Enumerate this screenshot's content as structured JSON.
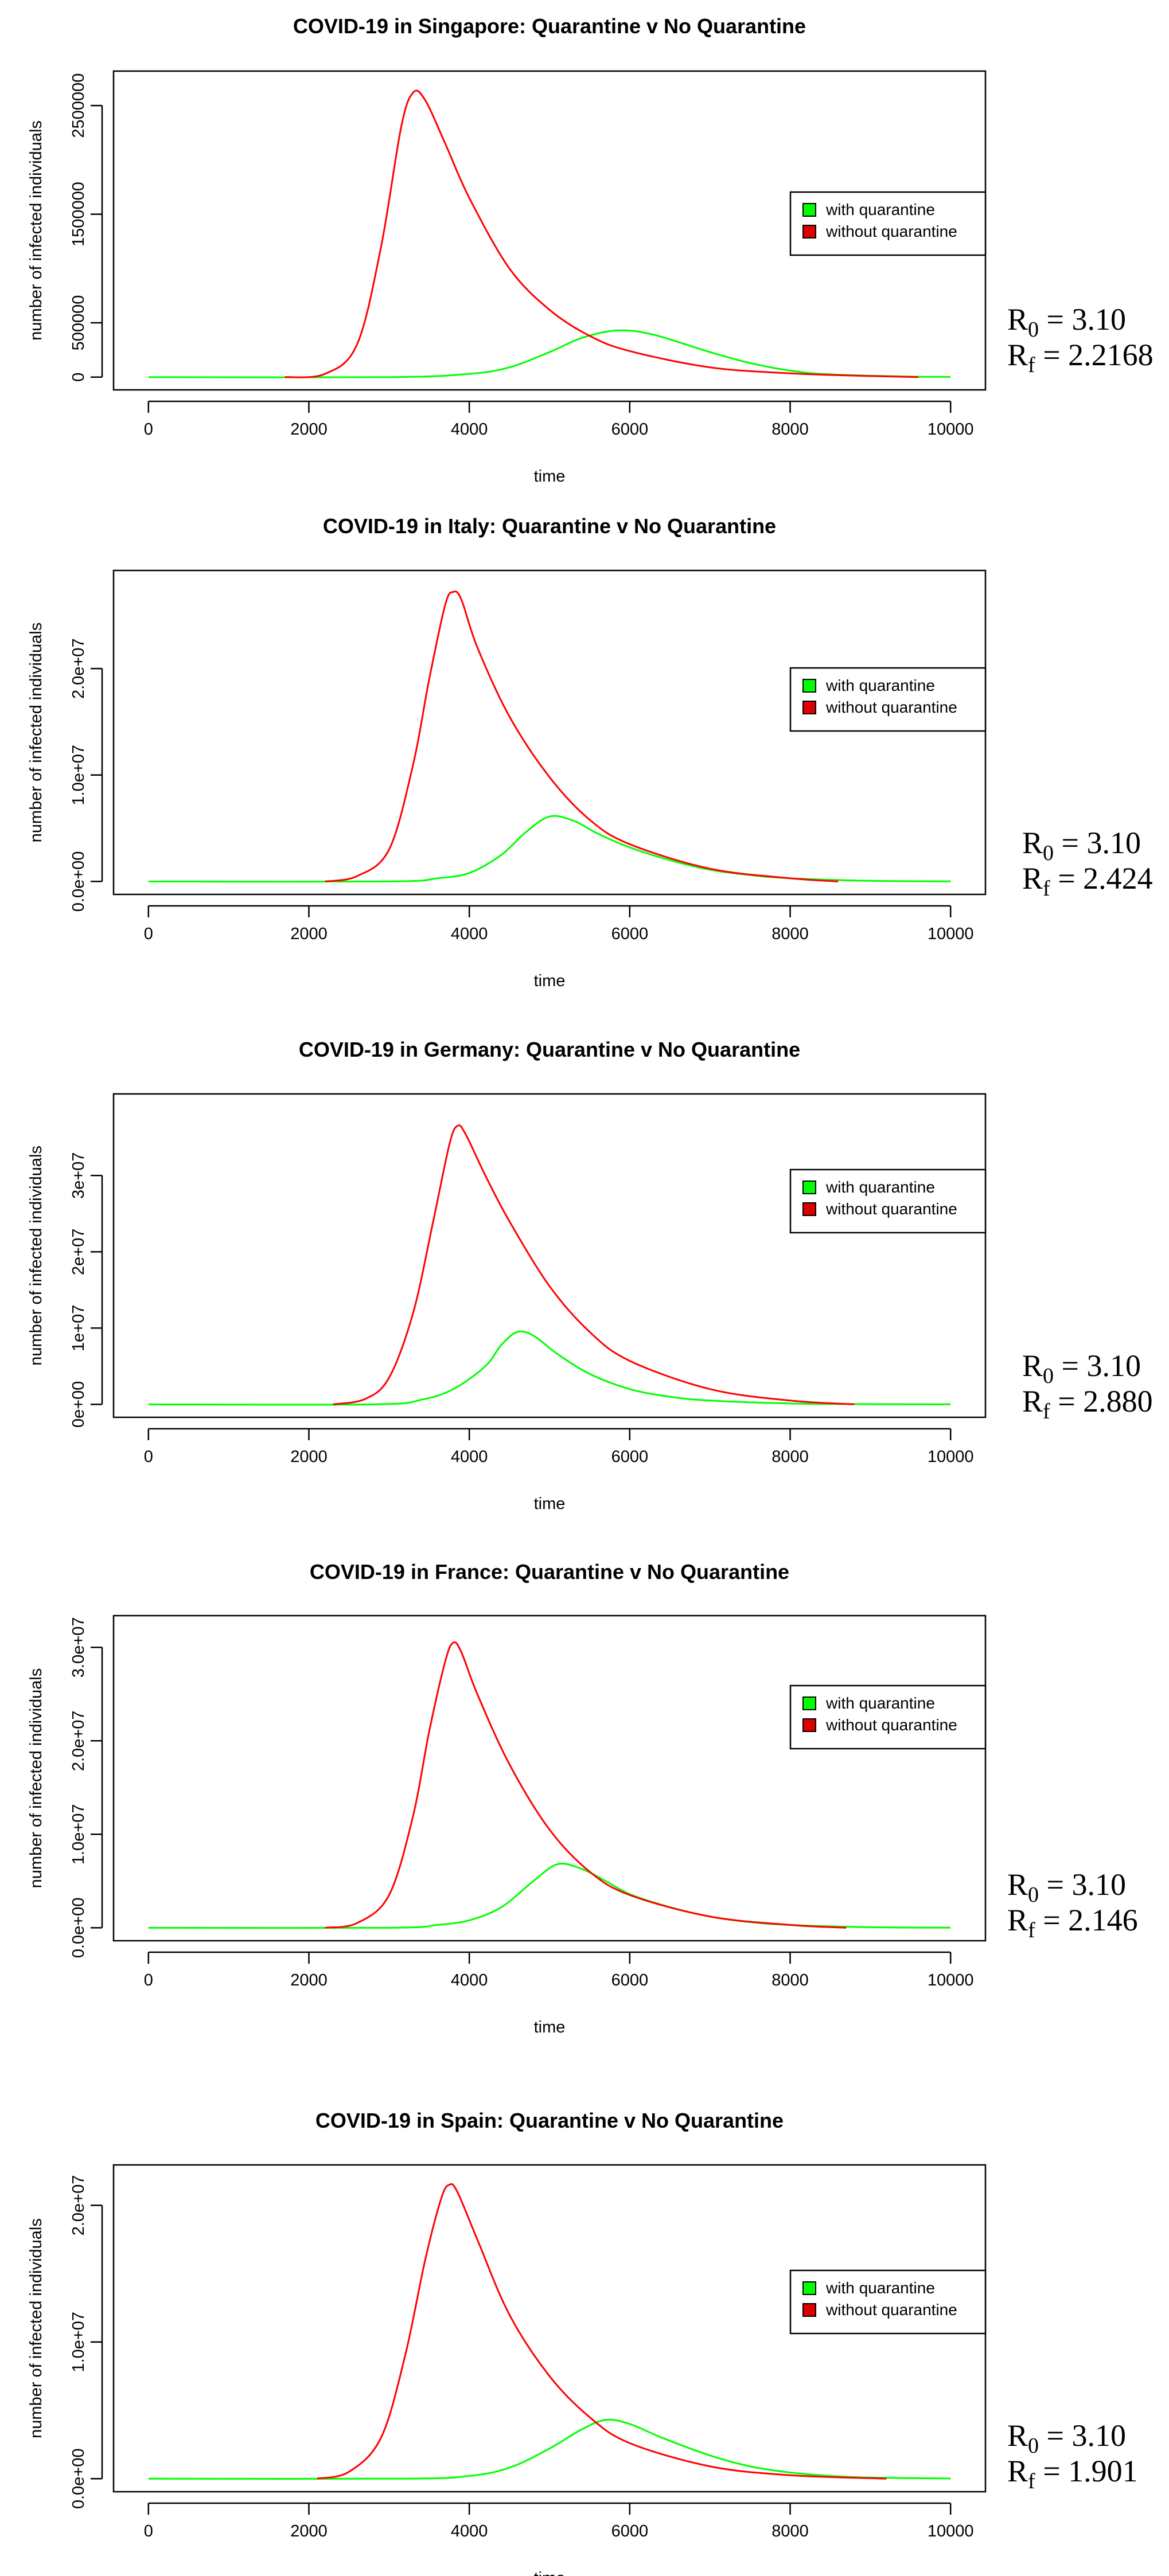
{
  "chart_data": [
    {
      "type": "line",
      "title": "COVID-19 in Singapore: Quarantine v No Quarantine",
      "xlabel": "time",
      "ylabel": "number of infected individuals",
      "xlim": [
        0,
        10000
      ],
      "ylim": [
        0,
        2700000
      ],
      "xticks": [
        0,
        2000,
        4000,
        6000,
        8000,
        10000
      ],
      "xtick_labels": [
        "0",
        "2000",
        "4000",
        "6000",
        "8000",
        "10000"
      ],
      "yticks": [
        0,
        500000,
        1500000,
        2500000
      ],
      "ytick_labels": [
        "0",
        "500000",
        "1500000",
        "2500000"
      ],
      "legend": {
        "position": "right",
        "entries": [
          "with quarantine",
          "without quarantine"
        ]
      },
      "series": [
        {
          "name": "with quarantine",
          "color": "#00ff00",
          "x": [
            0,
            3000,
            4000,
            4500,
            5000,
            5400,
            5850,
            6300,
            7000,
            7500,
            8000,
            8500,
            9500,
            10000
          ],
          "y": [
            0,
            0,
            30000,
            90000,
            230000,
            360000,
            430000,
            390000,
            230000,
            130000,
            60000,
            25000,
            5000,
            2000
          ]
        },
        {
          "name": "without quarantine",
          "color": "#ff0000",
          "x": [
            1700,
            2200,
            2600,
            2900,
            3150,
            3300,
            3450,
            3700,
            4000,
            4500,
            5000,
            5500,
            6000,
            7000,
            8000,
            9000,
            9600
          ],
          "y": [
            0,
            30000,
            300000,
            1200000,
            2300000,
            2620000,
            2550000,
            2150000,
            1650000,
            1000000,
            620000,
            380000,
            240000,
            90000,
            35000,
            10000,
            0
          ]
        }
      ],
      "annotation": {
        "r0_label": "R",
        "r0_sub": "0",
        "r0_value": " = 3.10",
        "rf_label": "R",
        "rf_sub": "f",
        "rf_value": " = 2.2168"
      }
    },
    {
      "type": "line",
      "title": "COVID-19 in Italy: Quarantine v No Quarantine",
      "xlabel": "time",
      "ylabel": "number of infected individuals",
      "xlim": [
        0,
        10000
      ],
      "ylim": [
        0,
        28000000
      ],
      "xticks": [
        0,
        2000,
        4000,
        6000,
        8000,
        10000
      ],
      "xtick_labels": [
        "0",
        "2000",
        "4000",
        "6000",
        "8000",
        "10000"
      ],
      "yticks": [
        0,
        10000000,
        20000000
      ],
      "ytick_labels": [
        "0.0e+00",
        "1.0e+07",
        "2.0e+07"
      ],
      "legend": {
        "position": "right",
        "entries": [
          "with quarantine",
          "without quarantine"
        ]
      },
      "series": [
        {
          "name": "with quarantine",
          "color": "#00ff00",
          "x": [
            0,
            3000,
            3600,
            4000,
            4400,
            4700,
            5000,
            5300,
            5600,
            6000,
            6500,
            7000,
            7500,
            8000,
            9000,
            10000
          ],
          "y": [
            0,
            0,
            300000,
            800000,
            2500000,
            4600000,
            6100000,
            5700000,
            4500000,
            3200000,
            2000000,
            1100000,
            600000,
            300000,
            60000,
            10000
          ]
        },
        {
          "name": "without quarantine",
          "color": "#ff0000",
          "x": [
            2200,
            2600,
            3000,
            3300,
            3500,
            3700,
            3800,
            3900,
            4100,
            4500,
            5000,
            5500,
            6000,
            7000,
            8000,
            8600
          ],
          "y": [
            0,
            500000,
            3000000,
            11000000,
            19000000,
            26000000,
            27200000,
            26500000,
            22000000,
            15500000,
            9800000,
            5800000,
            3500000,
            1200000,
            300000,
            0
          ]
        }
      ],
      "annotation": {
        "r0_label": "R",
        "r0_sub": "0",
        "r0_value": " = 3.10",
        "rf_label": "R",
        "rf_sub": "f",
        "rf_value": " = 2.424"
      }
    },
    {
      "type": "line",
      "title": "COVID-19 in Germany: Quarantine v No Quarantine",
      "xlabel": "time",
      "ylabel": "number of infected individuals",
      "xlim": [
        0,
        10000
      ],
      "ylim": [
        0,
        39000000
      ],
      "xticks": [
        0,
        2000,
        4000,
        6000,
        8000,
        10000
      ],
      "xtick_labels": [
        "0",
        "2000",
        "4000",
        "6000",
        "8000",
        "10000"
      ],
      "yticks": [
        0,
        10000000,
        20000000,
        30000000
      ],
      "ytick_labels": [
        "0e+00",
        "1e+07",
        "2e+07",
        "3e+07"
      ],
      "legend": {
        "position": "right",
        "entries": [
          "with quarantine",
          "without quarantine"
        ]
      },
      "series": [
        {
          "name": "with quarantine",
          "color": "#00ff00",
          "x": [
            0,
            2800,
            3400,
            3800,
            4200,
            4400,
            4600,
            4800,
            5100,
            5500,
            6000,
            6500,
            7000,
            8000,
            9000,
            10000
          ],
          "y": [
            0,
            0,
            600000,
            2000000,
            5000000,
            7800000,
            9500000,
            9000000,
            6600000,
            4000000,
            2000000,
            1000000,
            500000,
            120000,
            30000,
            5000
          ]
        },
        {
          "name": "without quarantine",
          "color": "#ff0000",
          "x": [
            2300,
            2700,
            3000,
            3300,
            3550,
            3750,
            3850,
            3950,
            4200,
            4500,
            5000,
            5500,
            6000,
            7000,
            8000,
            8800
          ],
          "y": [
            0,
            700000,
            3500000,
            12000000,
            24000000,
            34000000,
            36500000,
            35500000,
            30000000,
            24000000,
            15500000,
            9500000,
            5700000,
            2000000,
            500000,
            0
          ]
        }
      ],
      "annotation": {
        "r0_label": "R",
        "r0_sub": "0",
        "r0_value": " = 3.10",
        "rf_label": "R",
        "rf_sub": "f",
        "rf_value": " = 2.880"
      }
    },
    {
      "type": "line",
      "title": "COVID-19 in France: Quarantine v No Quarantine",
      "xlabel": "time",
      "ylabel": "number of infected individuals",
      "xlim": [
        0,
        10000
      ],
      "ylim": [
        0,
        32000000
      ],
      "xticks": [
        0,
        2000,
        4000,
        6000,
        8000,
        10000
      ],
      "xtick_labels": [
        "0",
        "2000",
        "4000",
        "6000",
        "8000",
        "10000"
      ],
      "yticks": [
        0,
        10000000,
        20000000,
        30000000
      ],
      "ytick_labels": [
        "0.0e+00",
        "1.0e+07",
        "2.0e+07",
        "3.0e+07"
      ],
      "legend": {
        "position": "right",
        "entries": [
          "with quarantine",
          "without quarantine"
        ]
      },
      "series": [
        {
          "name": "with quarantine",
          "color": "#00ff00",
          "x": [
            0,
            3000,
            3600,
            4000,
            4400,
            4800,
            5100,
            5400,
            5700,
            6000,
            6500,
            7000,
            7500,
            8000,
            9000,
            10000
          ],
          "y": [
            0,
            0,
            300000,
            800000,
            2200000,
            5000000,
            6800000,
            6300000,
            5000000,
            3600000,
            2200000,
            1200000,
            600000,
            300000,
            60000,
            10000
          ]
        },
        {
          "name": "without quarantine",
          "color": "#ff0000",
          "x": [
            2200,
            2600,
            3000,
            3300,
            3500,
            3700,
            3800,
            3900,
            4100,
            4500,
            5000,
            5500,
            6000,
            7000,
            8000,
            8700
          ],
          "y": [
            0,
            500000,
            3500000,
            12000000,
            21000000,
            28500000,
            30500000,
            29500000,
            25000000,
            17500000,
            10500000,
            6000000,
            3500000,
            1200000,
            300000,
            0
          ]
        }
      ],
      "annotation": {
        "r0_label": "R",
        "r0_sub": "0",
        "r0_value": " = 3.10",
        "rf_label": "R",
        "rf_sub": "f",
        "rf_value": " = 2.146"
      }
    },
    {
      "type": "line",
      "title": "COVID-19 in Spain: Quarantine v No Quarantine",
      "xlabel": "time",
      "ylabel": "number of infected individuals",
      "xlim": [
        0,
        10000
      ],
      "ylim": [
        0,
        22000000
      ],
      "xticks": [
        0,
        2000,
        4000,
        6000,
        8000,
        10000
      ],
      "xtick_labels": [
        "0",
        "2000",
        "4000",
        "6000",
        "8000",
        "10000"
      ],
      "yticks": [
        0,
        10000000,
        20000000
      ],
      "ytick_labels": [
        "0.0e+00",
        "1.0e+07",
        "2.0e+07"
      ],
      "legend": {
        "position": "right",
        "entries": [
          "with quarantine",
          "without quarantine"
        ]
      },
      "series": [
        {
          "name": "with quarantine",
          "color": "#00ff00",
          "x": [
            0,
            3200,
            4000,
            4500,
            5000,
            5400,
            5700,
            6000,
            6400,
            7000,
            7500,
            8000,
            8500,
            9000,
            10000
          ],
          "y": [
            0,
            0,
            200000,
            800000,
            2200000,
            3600000,
            4300000,
            4000000,
            3000000,
            1700000,
            900000,
            450000,
            200000,
            80000,
            10000
          ]
        },
        {
          "name": "without quarantine",
          "color": "#ff0000",
          "x": [
            2100,
            2500,
            2900,
            3200,
            3450,
            3650,
            3750,
            3850,
            4100,
            4500,
            5000,
            5500,
            6000,
            7000,
            8000,
            9200
          ],
          "y": [
            0,
            500000,
            3000000,
            9000000,
            16000000,
            20500000,
            21500000,
            21000000,
            17500000,
            12000000,
            7500000,
            4500000,
            2600000,
            900000,
            250000,
            0
          ]
        }
      ],
      "annotation": {
        "r0_label": "R",
        "r0_sub": "0",
        "r0_value": " = 3.10",
        "rf_label": "R",
        "rf_sub": "f",
        "rf_value": " = 1.901"
      }
    }
  ]
}
